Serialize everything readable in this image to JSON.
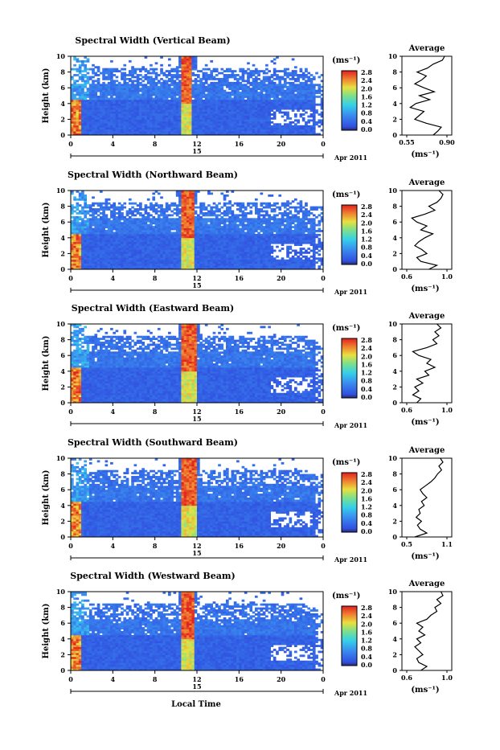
{
  "figure": {
    "xlabel": "Local Time",
    "date_label": "Apr 2011",
    "day_label": "15",
    "colorbar_unit": "(ms⁻¹)",
    "colorbar_ticks": [
      "0.0",
      "0.4",
      "0.8",
      "1.2",
      "1.6",
      "2.0",
      "2.4",
      "2.8"
    ],
    "average_title": "Average",
    "average_xlabel": "(ms⁻¹)"
  },
  "chart_data": [
    {
      "type": "heatmap",
      "title": "Spectral Width (Vertical Beam)",
      "ylabel": "Height (km)",
      "xlabel": "Local Time",
      "x_ticks": [
        "0",
        "4",
        "8",
        "12",
        "16",
        "20",
        "0"
      ],
      "y_ticks": [
        "0",
        "2",
        "4",
        "6",
        "8",
        "10"
      ],
      "xlim": [
        0,
        24
      ],
      "ylim": [
        0,
        10
      ],
      "colorbar": {
        "range": [
          0.0,
          2.8
        ],
        "unit": "(ms⁻¹)"
      },
      "features": {
        "strong_column_hours": [
          10.6,
          11.6
        ],
        "low_layer_top_km": 4.5,
        "cloud_gap_km": [
          8.5,
          10
        ]
      },
      "average_profile": {
        "xlim": [
          0.55,
          0.9
        ],
        "x_ticks": [
          "0.55",
          "0.90"
        ],
        "height_km": [
          0,
          0.5,
          1,
          1.5,
          2,
          2.5,
          3,
          3.5,
          4,
          4.5,
          5,
          5.5,
          6,
          6.5,
          7,
          7.5,
          8,
          8.5,
          9,
          9.5,
          10
        ],
        "width_ms": [
          0.78,
          0.82,
          0.85,
          0.72,
          0.62,
          0.66,
          0.7,
          0.58,
          0.63,
          0.75,
          0.66,
          0.79,
          0.7,
          0.62,
          0.68,
          0.72,
          0.64,
          0.73,
          0.78,
          0.86,
          0.88
        ]
      }
    },
    {
      "type": "heatmap",
      "title": "Spectral Width (Northward Beam)",
      "ylabel": "Height (km)",
      "xlabel": "Local Time",
      "x_ticks": [
        "0",
        "4",
        "8",
        "12",
        "16",
        "20",
        "0"
      ],
      "y_ticks": [
        "0",
        "2",
        "4",
        "6",
        "8",
        "10"
      ],
      "xlim": [
        0,
        24
      ],
      "ylim": [
        0,
        10
      ],
      "colorbar": {
        "range": [
          0.0,
          2.8
        ],
        "unit": "(ms⁻¹)"
      },
      "features": {
        "strong_column_hours": [
          10.5,
          11.7
        ],
        "low_layer_top_km": 4.5,
        "cloud_gap_km": [
          8.5,
          10
        ]
      },
      "average_profile": {
        "xlim": [
          0.6,
          1.0
        ],
        "x_ticks": [
          "0.6",
          "1.0"
        ],
        "height_km": [
          0,
          0.5,
          1,
          1.5,
          2,
          2.5,
          3,
          3.5,
          4,
          4.5,
          5,
          5.5,
          6,
          6.5,
          7,
          7.5,
          8,
          8.5,
          9,
          9.5,
          10
        ],
        "width_ms": [
          0.82,
          0.9,
          0.74,
          0.7,
          0.8,
          0.75,
          0.68,
          0.72,
          0.78,
          0.86,
          0.74,
          0.8,
          0.7,
          0.65,
          0.78,
          0.88,
          0.82,
          0.9,
          0.94,
          0.96,
          0.92
        ]
      }
    },
    {
      "type": "heatmap",
      "title": "Spectral Width (Eastward Beam)",
      "ylabel": "Height (km)",
      "xlabel": "Local Time",
      "x_ticks": [
        "0",
        "4",
        "8",
        "12",
        "16",
        "20",
        "0"
      ],
      "y_ticks": [
        "0",
        "2",
        "4",
        "6",
        "8",
        "10"
      ],
      "xlim": [
        0,
        24
      ],
      "ylim": [
        0,
        10
      ],
      "colorbar": {
        "range": [
          0.0,
          2.8
        ],
        "unit": "(ms⁻¹)"
      },
      "features": {
        "strong_column_hours": [
          10.6,
          11.9
        ],
        "low_layer_top_km": 4.5,
        "cloud_gap_km": [
          8.5,
          10
        ]
      },
      "average_profile": {
        "xlim": [
          0.6,
          1.0
        ],
        "x_ticks": [
          "0.6",
          "1.0"
        ],
        "height_km": [
          0,
          0.5,
          1,
          1.5,
          2,
          2.5,
          3,
          3.5,
          4,
          4.5,
          5,
          5.5,
          6,
          6.5,
          7,
          7.5,
          8,
          8.5,
          9,
          9.5,
          10
        ],
        "width_ms": [
          0.7,
          0.74,
          0.66,
          0.72,
          0.68,
          0.76,
          0.7,
          0.82,
          0.78,
          0.88,
          0.8,
          0.84,
          0.72,
          0.66,
          0.8,
          0.9,
          0.86,
          0.92,
          0.88,
          0.94,
          0.9
        ]
      }
    },
    {
      "type": "heatmap",
      "title": "Spectral Width (Southward Beam)",
      "ylabel": "Height (km)",
      "xlabel": "Local Time",
      "x_ticks": [
        "0",
        "4",
        "8",
        "12",
        "16",
        "20",
        "0"
      ],
      "y_ticks": [
        "0",
        "2",
        "4",
        "6",
        "8",
        "10"
      ],
      "xlim": [
        0,
        24
      ],
      "ylim": [
        0,
        10
      ],
      "colorbar": {
        "range": [
          0.0,
          2.8
        ],
        "unit": "(ms⁻¹)"
      },
      "features": {
        "strong_column_hours": [
          10.5,
          12.0
        ],
        "low_layer_top_km": 4.5,
        "cloud_gap_km": [
          8.5,
          10
        ]
      },
      "average_profile": {
        "xlim": [
          0.5,
          1.1
        ],
        "x_ticks": [
          "0.5",
          "1.1"
        ],
        "height_km": [
          0,
          0.5,
          1,
          1.5,
          2,
          2.5,
          3,
          3.5,
          4,
          4.5,
          5,
          5.5,
          6,
          6.5,
          7,
          7.5,
          8,
          8.5,
          9,
          9.5,
          10
        ],
        "width_ms": [
          0.62,
          0.8,
          0.7,
          0.66,
          0.72,
          0.64,
          0.7,
          0.68,
          0.76,
          0.72,
          0.8,
          0.74,
          0.7,
          0.78,
          0.86,
          0.92,
          0.96,
          1.02,
          0.98,
          1.04,
          1.0
        ]
      }
    },
    {
      "type": "heatmap",
      "title": "Spectral Width (Westward Beam)",
      "ylabel": "Height (km)",
      "xlabel": "Local Time",
      "x_ticks": [
        "0",
        "4",
        "8",
        "12",
        "16",
        "20",
        "0"
      ],
      "y_ticks": [
        "0",
        "2",
        "4",
        "6",
        "8",
        "10"
      ],
      "xlim": [
        0,
        24
      ],
      "ylim": [
        0,
        10
      ],
      "colorbar": {
        "range": [
          0.0,
          2.8
        ],
        "unit": "(ms⁻¹)"
      },
      "features": {
        "strong_column_hours": [
          10.5,
          11.8
        ],
        "low_layer_top_km": 4.5,
        "cloud_gap_km": [
          8.5,
          10
        ]
      },
      "average_profile": {
        "xlim": [
          0.6,
          1.0
        ],
        "x_ticks": [
          "0.6",
          "1.0"
        ],
        "height_km": [
          0,
          0.5,
          1,
          1.5,
          2,
          2.5,
          3,
          3.5,
          4,
          4.5,
          5,
          5.5,
          6,
          6.5,
          7,
          7.5,
          8,
          8.5,
          9,
          9.5,
          10
        ],
        "width_ms": [
          0.74,
          0.8,
          0.72,
          0.7,
          0.76,
          0.72,
          0.68,
          0.74,
          0.7,
          0.78,
          0.72,
          0.76,
          0.7,
          0.8,
          0.84,
          0.9,
          0.88,
          0.94,
          0.9,
          0.96,
          0.94
        ]
      }
    }
  ]
}
